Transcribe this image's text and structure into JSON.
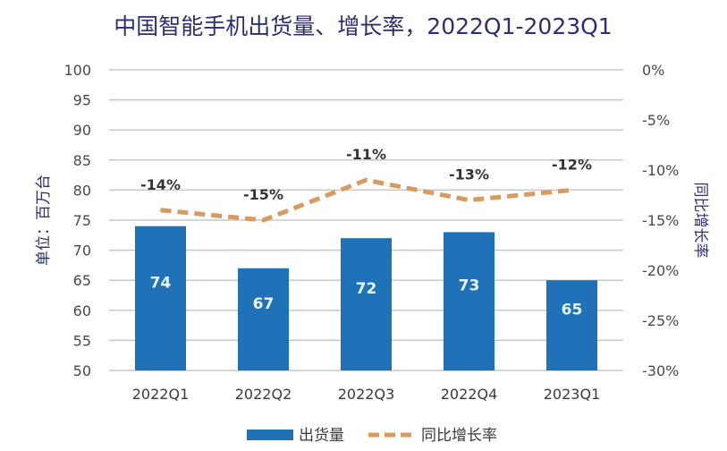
{
  "chart_data": {
    "type": "bar+line",
    "title": "中国智能手机出货量、增长率，2022Q1-2023Q1",
    "categories": [
      "2022Q1",
      "2022Q2",
      "2022Q3",
      "2022Q4",
      "2023Q1"
    ],
    "series": [
      {
        "name": "出货量",
        "type": "bar",
        "axis": "left",
        "values": [
          74,
          67,
          72,
          73,
          65
        ],
        "labels": [
          "74",
          "67",
          "72",
          "73",
          "65"
        ],
        "color": "#1f72b8"
      },
      {
        "name": "同比增长率",
        "type": "line",
        "style": "dashed",
        "axis": "right",
        "values": [
          -14,
          -15,
          -11,
          -13,
          -12
        ],
        "labels": [
          "-14%",
          "-15%",
          "-11%",
          "-13%",
          "-12%"
        ],
        "color": "#d99a5e"
      }
    ],
    "ylabel": "单位：百万台",
    "y2label": "同比增长率",
    "ylim": [
      50,
      100
    ],
    "y2lim": [
      -30,
      0
    ],
    "yticks": [
      "100",
      "95",
      "90",
      "85",
      "80",
      "75",
      "70",
      "65",
      "60",
      "55",
      "50"
    ],
    "y2ticks": [
      "0%",
      "-5%",
      "-10%",
      "-15%",
      "-20%",
      "-25%",
      "-30%"
    ],
    "grid": true,
    "legend": {
      "placement": "bottom",
      "entries": [
        "出货量",
        "同比增长率"
      ]
    }
  }
}
